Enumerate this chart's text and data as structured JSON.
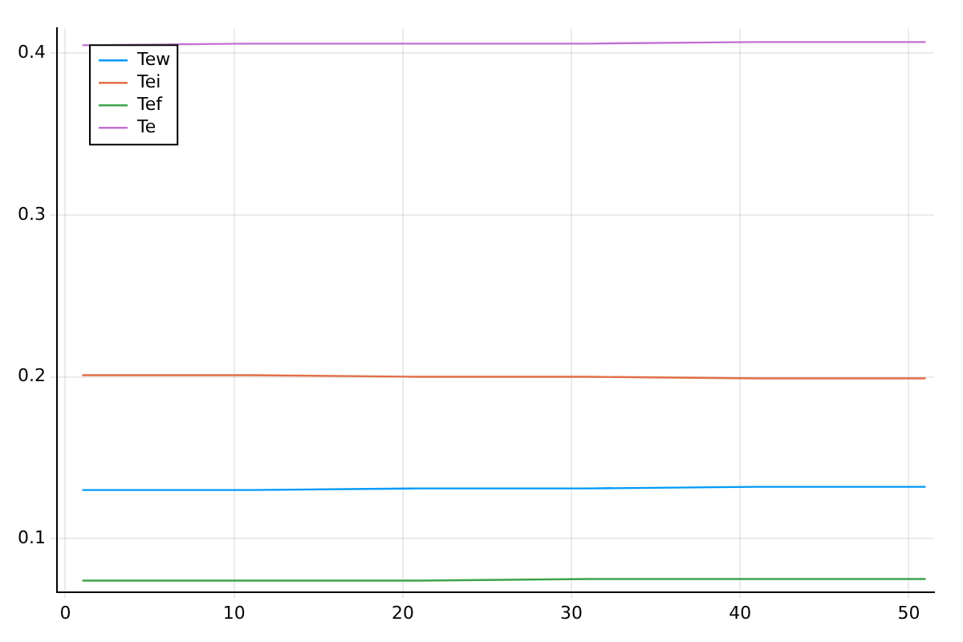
{
  "chart_data": {
    "type": "line",
    "xlim": [
      -0.5,
      51.5
    ],
    "xticks": [
      0,
      10,
      20,
      30,
      40,
      50
    ],
    "ylim": [
      0.067,
      0.4155
    ],
    "yticks": [
      0.1,
      0.2,
      0.3,
      0.4
    ],
    "grid": true,
    "legend": "top left",
    "x": [
      1,
      11,
      21,
      31,
      41,
      51
    ],
    "series": [
      {
        "name": "Tew",
        "color": "#009af9",
        "values": [
          0.13,
          0.13,
          0.131,
          0.131,
          0.132,
          0.132
        ]
      },
      {
        "name": "Tei",
        "color": "#e26f46",
        "values": [
          0.201,
          0.201,
          0.2,
          0.2,
          0.199,
          0.199
        ]
      },
      {
        "name": "Tef",
        "color": "#3da44d",
        "values": [
          0.074,
          0.074,
          0.074,
          0.075,
          0.075,
          0.075
        ]
      },
      {
        "name": "Te",
        "color": "#c271d2",
        "values": [
          0.405,
          0.406,
          0.406,
          0.406,
          0.407,
          0.407
        ]
      }
    ]
  }
}
